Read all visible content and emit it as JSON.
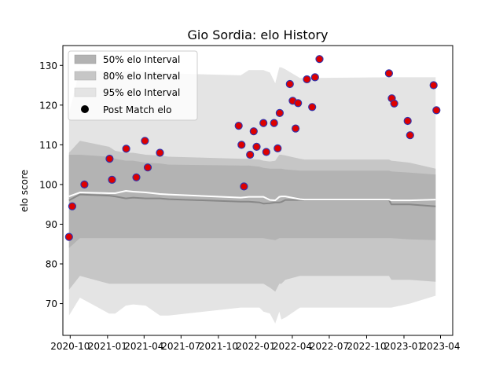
{
  "chart_data": {
    "type": "scatter",
    "title": "Gio Sordia: elo History",
    "xlabel": "",
    "ylabel": "elo score",
    "xlim": [
      "2020-09-13",
      "2023-05-01"
    ],
    "ylim": [
      62,
      135
    ],
    "y_ticks": [
      70,
      80,
      90,
      100,
      110,
      120,
      130
    ],
    "x_ticks": [
      "2020-10",
      "2021-01",
      "2021-04",
      "2021-07",
      "2021-10",
      "2022-01",
      "2022-04",
      "2022-07",
      "2022-10",
      "2023-01",
      "2023-04"
    ],
    "grid": false,
    "legend_position": "top-left",
    "legend": [
      {
        "label": "50% elo Interval",
        "color": "#b3b3b3"
      },
      {
        "label": "80% elo Interval",
        "color": "#c6c6c6"
      },
      {
        "label": "95% elo Interval",
        "color": "#e4e4e4"
      },
      {
        "label": "Post Match elo",
        "color": "#000000"
      }
    ],
    "colors": {
      "band50": "#b3b3b3",
      "band80": "#c6c6c6",
      "band95": "#e4e4e4",
      "mean_line": "#ffffff",
      "median_line": "#888888",
      "marker_face": "#dd0000",
      "marker_edge": "#3333aa"
    },
    "bands": {
      "x": [
        "2020-09-28",
        "2020-10-25",
        "2021-01-05",
        "2021-01-20",
        "2021-02-15",
        "2021-03-05",
        "2021-04-05",
        "2021-05-10",
        "2021-06-01",
        "2021-11-25",
        "2021-12-15",
        "2022-01-10",
        "2022-01-20",
        "2022-02-05",
        "2022-02-18",
        "2022-02-28",
        "2022-03-05",
        "2022-03-15",
        "2022-04-20",
        "2022-05-01",
        "2022-11-25",
        "2022-12-01",
        "2023-01-15",
        "2023-03-20"
      ],
      "p95_low": [
        67,
        71.5,
        67.5,
        67.5,
        69.5,
        69.8,
        69.5,
        67,
        67,
        69,
        69,
        69,
        68,
        67.5,
        65,
        68,
        66,
        66.5,
        69,
        69,
        69,
        69,
        70,
        72
      ],
      "p95_high": [
        118,
        129,
        128.5,
        128.5,
        128.5,
        128.5,
        128.5,
        128.5,
        128,
        127.5,
        128.8,
        128.8,
        128.8,
        128.2,
        125.5,
        129.5,
        129.5,
        129,
        126.8,
        126.8,
        127,
        127,
        127,
        127
      ],
      "p80_low": [
        73.5,
        77,
        75,
        75,
        75,
        75,
        75,
        75,
        75,
        75,
        75,
        75,
        75,
        74,
        73,
        75,
        75,
        76,
        77,
        77,
        77,
        76,
        76,
        75.5
      ],
      "p80_high": [
        108,
        111,
        109.5,
        108.5,
        108,
        108,
        107.5,
        107.3,
        107,
        106.5,
        106.5,
        106.3,
        106,
        105.8,
        106,
        107.5,
        107.5,
        107.3,
        106.5,
        106.3,
        106.3,
        106,
        105.5,
        104
      ],
      "p50_low": [
        84,
        86.5,
        86.5,
        86.5,
        86.5,
        86.5,
        86.5,
        86.5,
        86.5,
        86.5,
        86.5,
        86.5,
        86.5,
        86.2,
        86,
        86.5,
        86.5,
        86.5,
        86.5,
        86.5,
        86.5,
        86.5,
        86.2,
        86
      ],
      "p50_high": [
        107.5,
        107.5,
        107,
        106.5,
        106,
        106,
        105.5,
        105.3,
        105,
        104.8,
        104.8,
        104.5,
        104.2,
        104,
        104,
        104,
        104,
        103.8,
        103.5,
        103.5,
        103.5,
        103.3,
        103,
        102.5
      ],
      "mean": [
        97,
        98,
        97.8,
        97.8,
        98.4,
        98.2,
        98,
        97.6,
        97.5,
        96.7,
        96.9,
        96.9,
        96.9,
        96.1,
        96.0,
        96.9,
        97.0,
        97.0,
        96.3,
        96.2,
        96.2,
        96.0,
        96.0,
        96.2
      ],
      "median": [
        96,
        97.5,
        97.2,
        97.0,
        96.5,
        96.7,
        96.5,
        96.5,
        96.3,
        95.7,
        95.7,
        95.5,
        95.2,
        95.3,
        95.5,
        95.5,
        95.6,
        96.1,
        96.1,
        96.1,
        96.1,
        95.0,
        95.0,
        94.5
      ]
    },
    "points": [
      {
        "x": "2020-09-28",
        "y": 86.8
      },
      {
        "x": "2020-10-06",
        "y": 94.5
      },
      {
        "x": "2020-11-05",
        "y": 100.0
      },
      {
        "x": "2021-01-06",
        "y": 106.5
      },
      {
        "x": "2021-01-12",
        "y": 101.2
      },
      {
        "x": "2021-02-16",
        "y": 109.0
      },
      {
        "x": "2021-03-13",
        "y": 101.8
      },
      {
        "x": "2021-04-03",
        "y": 111.0
      },
      {
        "x": "2021-04-10",
        "y": 104.3
      },
      {
        "x": "2021-05-10",
        "y": 108.0
      },
      {
        "x": "2021-11-20",
        "y": 114.8
      },
      {
        "x": "2021-11-27",
        "y": 110.0
      },
      {
        "x": "2021-12-03",
        "y": 99.5
      },
      {
        "x": "2021-12-18",
        "y": 107.5
      },
      {
        "x": "2021-12-27",
        "y": 113.4
      },
      {
        "x": "2022-01-03",
        "y": 109.5
      },
      {
        "x": "2022-01-20",
        "y": 115.5
      },
      {
        "x": "2022-01-27",
        "y": 108.2
      },
      {
        "x": "2022-02-15",
        "y": 115.5
      },
      {
        "x": "2022-02-24",
        "y": 109.1
      },
      {
        "x": "2022-03-01",
        "y": 118.0
      },
      {
        "x": "2022-03-26",
        "y": 125.3
      },
      {
        "x": "2022-04-02",
        "y": 121.1
      },
      {
        "x": "2022-04-09",
        "y": 114.1
      },
      {
        "x": "2022-04-15",
        "y": 120.5
      },
      {
        "x": "2022-05-07",
        "y": 126.5
      },
      {
        "x": "2022-05-20",
        "y": 119.5
      },
      {
        "x": "2022-05-27",
        "y": 127.0
      },
      {
        "x": "2022-06-07",
        "y": 131.6
      },
      {
        "x": "2022-11-25",
        "y": 128.0
      },
      {
        "x": "2022-12-02",
        "y": 121.7
      },
      {
        "x": "2022-12-08",
        "y": 120.4
      },
      {
        "x": "2023-01-10",
        "y": 116.0
      },
      {
        "x": "2023-01-16",
        "y": 112.4
      },
      {
        "x": "2023-03-15",
        "y": 125.0
      },
      {
        "x": "2023-03-22",
        "y": 118.7
      }
    ]
  }
}
